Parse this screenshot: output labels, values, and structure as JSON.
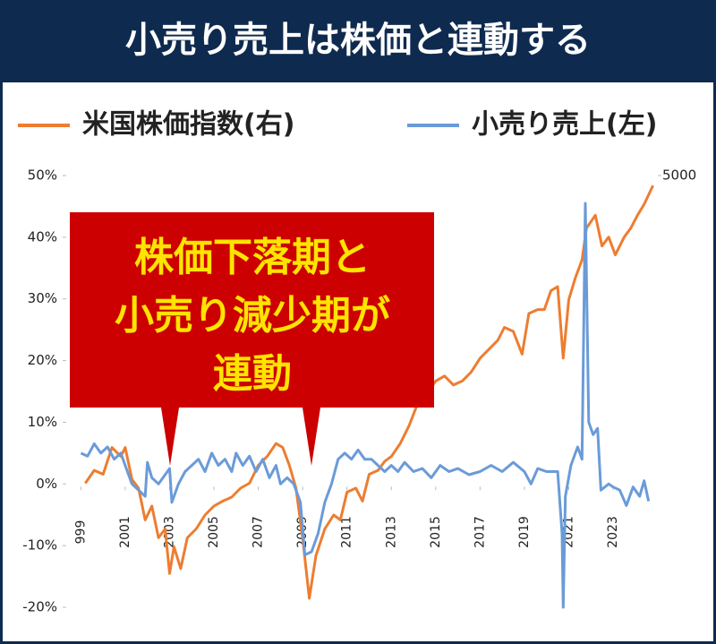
{
  "chart_data": {
    "type": "line",
    "title": "小売り売上は株価と連動する",
    "annotation": {
      "lines": [
        "株価下落期と",
        "小売り減少期が",
        "連動"
      ],
      "color": "#cc0000",
      "text_color": "#ffe400"
    },
    "xlim": [
      1998.5,
      2025.3
    ],
    "xticks": [
      {
        "value": 1999,
        "label": "999"
      },
      2001,
      2003,
      2005,
      2007,
      2009,
      2011,
      2013,
      2015,
      2017,
      2019,
      2021,
      2023
    ],
    "ylim": [
      -20,
      50
    ],
    "yticks": [
      {
        "value": 50,
        "label": "50%"
      },
      {
        "value": 40,
        "label": "40%"
      },
      {
        "value": 30,
        "label": "30%"
      },
      {
        "value": 20,
        "label": "20%"
      },
      {
        "value": 10,
        "label": "10%"
      },
      {
        "value": 0,
        "label": "0%"
      },
      {
        "value": -10,
        "label": "-10%"
      },
      {
        "value": -20,
        "label": "-20%"
      }
    ],
    "y2lim": [
      650,
      5000
    ],
    "y2ticks": [
      5000
    ],
    "series": [
      {
        "name": "米国株価指数(右)",
        "color": "#ed7d31",
        "axis": "y2",
        "x": [
          1999.2,
          1999.6,
          2000.0,
          2000.4,
          2000.8,
          2001.0,
          2001.3,
          2001.6,
          2001.9,
          2002.2,
          2002.5,
          2002.8,
          2003.0,
          2003.2,
          2003.5,
          2003.8,
          2004.2,
          2004.6,
          2005.0,
          2005.4,
          2005.8,
          2006.2,
          2006.6,
          2007.0,
          2007.4,
          2007.8,
          2008.1,
          2008.4,
          2008.7,
          2009.0,
          2009.3,
          2009.6,
          2010.0,
          2010.4,
          2010.7,
          2011.0,
          2011.4,
          2011.7,
          2012.0,
          2012.4,
          2012.7,
          2013.0,
          2013.4,
          2013.8,
          2014.2,
          2014.6,
          2015.0,
          2015.4,
          2015.8,
          2016.2,
          2016.6,
          2017.0,
          2017.4,
          2017.8,
          2018.1,
          2018.5,
          2018.9,
          2019.2,
          2019.6,
          2019.9,
          2020.2,
          2020.5,
          2020.75,
          2021.0,
          2021.3,
          2021.6,
          2021.8,
          2022.2,
          2022.5,
          2022.8,
          2023.1,
          2023.5,
          2023.8,
          2024.1,
          2024.4,
          2024.8
        ],
        "values": [
          1900,
          2030,
          1990,
          2260,
          2170,
          2260,
          1940,
          1850,
          1530,
          1670,
          1350,
          1440,
          990,
          1260,
          1040,
          1350,
          1440,
          1580,
          1670,
          1720,
          1760,
          1850,
          1900,
          2080,
          2170,
          2300,
          2260,
          2080,
          1850,
          1350,
          740,
          1170,
          1440,
          1580,
          1530,
          1810,
          1850,
          1720,
          1990,
          2030,
          2120,
          2170,
          2300,
          2480,
          2710,
          2800,
          2930,
          2980,
          2890,
          2930,
          3020,
          3160,
          3250,
          3340,
          3470,
          3430,
          3200,
          3610,
          3650,
          3650,
          3840,
          3880,
          3160,
          3750,
          3970,
          4150,
          4470,
          4600,
          4290,
          4380,
          4200,
          4380,
          4470,
          4600,
          4710,
          4900
        ]
      },
      {
        "name": "小売り売上(左)",
        "color": "#6a9bd8",
        "x": [
          1999.0,
          1999.3,
          1999.6,
          1999.9,
          2000.2,
          2000.5,
          2000.8,
          2001.0,
          2001.3,
          2001.6,
          2001.9,
          2002.0,
          2002.2,
          2002.5,
          2002.8,
          2003.0,
          2003.1,
          2003.4,
          2003.7,
          2004.0,
          2004.3,
          2004.6,
          2004.9,
          2005.2,
          2005.5,
          2005.8,
          2006.0,
          2006.3,
          2006.6,
          2006.9,
          2007.2,
          2007.5,
          2007.8,
          2008.0,
          2008.3,
          2008.6,
          2008.9,
          2009.1,
          2009.4,
          2009.7,
          2010.0,
          2010.3,
          2010.6,
          2010.9,
          2011.2,
          2011.5,
          2011.8,
          2012.1,
          2012.4,
          2012.7,
          2013.0,
          2013.3,
          2013.6,
          2014.0,
          2014.4,
          2014.8,
          2015.2,
          2015.6,
          2016.0,
          2016.5,
          2017.0,
          2017.5,
          2018.0,
          2018.5,
          2019.0,
          2019.3,
          2019.6,
          2020.0,
          2020.5,
          2020.7,
          2020.75,
          2020.85,
          2021.1,
          2021.4,
          2021.6,
          2021.75,
          2021.9,
          2022.1,
          2022.3,
          2022.45,
          2022.8,
          2023.0,
          2023.3,
          2023.6,
          2023.9,
          2024.2,
          2024.4,
          2024.6
        ],
        "values": [
          5,
          4.5,
          6.5,
          5,
          6,
          4,
          5,
          3,
          0,
          -1,
          -2,
          3.5,
          1,
          0,
          1.5,
          2.5,
          -3,
          0,
          2,
          3,
          4,
          2,
          5,
          3,
          4,
          2,
          5,
          3,
          4.5,
          2,
          4,
          1,
          3,
          0,
          1,
          0,
          -3,
          -11.5,
          -11,
          -8,
          -3,
          0,
          4,
          5,
          4,
          5.5,
          4,
          4,
          3,
          2,
          3,
          2,
          3.5,
          2,
          2.5,
          1,
          3,
          2,
          2.5,
          1.5,
          2,
          3,
          2,
          3.5,
          2,
          0,
          2.5,
          2,
          2,
          -8,
          -20,
          -2,
          3,
          6,
          4,
          45.5,
          10,
          8,
          9,
          -1,
          0,
          -0.5,
          -1,
          -3.5,
          -0.5,
          -2,
          0.5,
          -2.8
        ]
      }
    ]
  }
}
